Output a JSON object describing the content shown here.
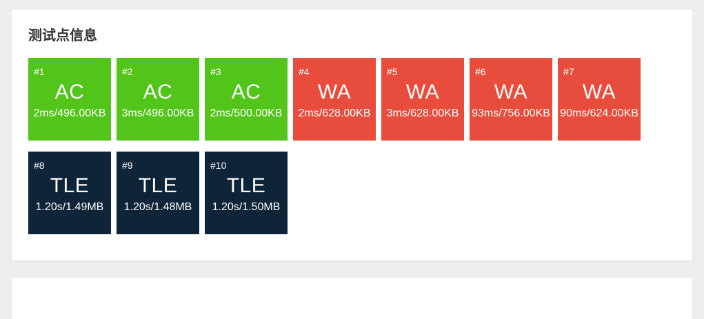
{
  "panel": {
    "title": "测试点信息"
  },
  "colors": {
    "page_background": "#ededed",
    "panel_background": "#ffffff",
    "title_text": "#333333",
    "card_text": "#ffffff",
    "status_AC": "#52C41A",
    "status_WA": "#E74C3C",
    "status_TLE": "#0E2439"
  },
  "test_cases": [
    {
      "id": "#1",
      "status": "AC",
      "detail": "2ms/496.00KB"
    },
    {
      "id": "#2",
      "status": "AC",
      "detail": "3ms/496.00KB"
    },
    {
      "id": "#3",
      "status": "AC",
      "detail": "2ms/500.00KB"
    },
    {
      "id": "#4",
      "status": "WA",
      "detail": "2ms/628.00KB"
    },
    {
      "id": "#5",
      "status": "WA",
      "detail": "3ms/628.00KB"
    },
    {
      "id": "#6",
      "status": "WA",
      "detail": "93ms/756.00KB"
    },
    {
      "id": "#7",
      "status": "WA",
      "detail": "90ms/624.00KB"
    },
    {
      "id": "#8",
      "status": "TLE",
      "detail": "1.20s/1.49MB"
    },
    {
      "id": "#9",
      "status": "TLE",
      "detail": "1.20s/1.48MB"
    },
    {
      "id": "#10",
      "status": "TLE",
      "detail": "1.20s/1.50MB"
    }
  ]
}
